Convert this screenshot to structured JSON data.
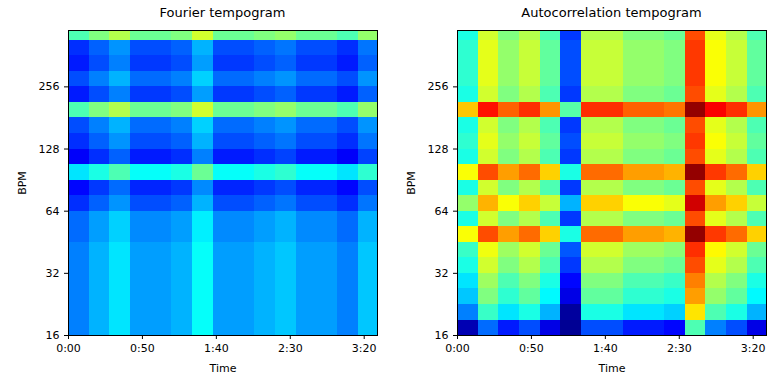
{
  "chart_data": [
    {
      "type": "heatmap",
      "title": "Fourier tempogram",
      "x_label": "Time",
      "y_label": "BPM",
      "log": "y",
      "color": "jet",
      "xlim": [
        0,
        209
      ],
      "ylim": [
        16,
        480
      ],
      "xticks": [
        {
          "value": 0,
          "label": "0:00"
        },
        {
          "value": 50,
          "label": "0:50"
        },
        {
          "value": 100,
          "label": "1:40"
        },
        {
          "value": 150,
          "label": "2:30"
        },
        {
          "value": 200,
          "label": "3:20"
        }
      ],
      "yticks": [
        16,
        32,
        64,
        128,
        256
      ],
      "color_range": [
        0,
        1
      ],
      "x_edges": [
        0,
        14,
        28,
        42,
        56,
        70,
        84,
        98,
        112,
        126,
        140,
        154,
        168,
        182,
        196,
        209
      ],
      "y_edges": [
        16,
        19,
        22.6,
        27,
        32,
        38,
        45,
        54,
        64,
        76,
        90,
        108,
        128,
        152,
        181,
        215,
        256,
        304,
        362,
        431,
        480
      ],
      "values": [
        [
          0.25,
          0.3,
          0.35,
          0.28,
          0.28,
          0.3,
          0.38,
          0.28,
          0.28,
          0.3,
          0.32,
          0.28,
          0.28,
          0.25,
          0.32
        ],
        [
          0.25,
          0.3,
          0.35,
          0.28,
          0.28,
          0.3,
          0.38,
          0.28,
          0.28,
          0.3,
          0.32,
          0.28,
          0.28,
          0.25,
          0.32
        ],
        [
          0.25,
          0.3,
          0.35,
          0.28,
          0.28,
          0.3,
          0.38,
          0.28,
          0.28,
          0.3,
          0.32,
          0.28,
          0.28,
          0.25,
          0.32
        ],
        [
          0.25,
          0.3,
          0.35,
          0.28,
          0.28,
          0.3,
          0.38,
          0.28,
          0.28,
          0.3,
          0.32,
          0.28,
          0.28,
          0.25,
          0.32
        ],
        [
          0.25,
          0.3,
          0.35,
          0.28,
          0.28,
          0.3,
          0.38,
          0.28,
          0.28,
          0.3,
          0.32,
          0.28,
          0.28,
          0.25,
          0.32
        ],
        [
          0.25,
          0.3,
          0.35,
          0.28,
          0.28,
          0.3,
          0.38,
          0.28,
          0.28,
          0.3,
          0.32,
          0.28,
          0.28,
          0.25,
          0.32
        ],
        [
          0.23,
          0.28,
          0.33,
          0.26,
          0.26,
          0.28,
          0.36,
          0.26,
          0.26,
          0.28,
          0.3,
          0.26,
          0.26,
          0.23,
          0.3
        ],
        [
          0.23,
          0.28,
          0.33,
          0.26,
          0.26,
          0.28,
          0.36,
          0.26,
          0.26,
          0.28,
          0.3,
          0.26,
          0.26,
          0.23,
          0.3
        ],
        [
          0.17,
          0.22,
          0.27,
          0.2,
          0.2,
          0.22,
          0.3,
          0.2,
          0.2,
          0.22,
          0.24,
          0.2,
          0.2,
          0.17,
          0.24
        ],
        [
          0.13,
          0.18,
          0.23,
          0.16,
          0.16,
          0.18,
          0.26,
          0.16,
          0.16,
          0.18,
          0.2,
          0.16,
          0.16,
          0.13,
          0.2
        ],
        [
          0.35,
          0.4,
          0.45,
          0.38,
          0.38,
          0.4,
          0.48,
          0.38,
          0.38,
          0.4,
          0.42,
          0.38,
          0.38,
          0.35,
          0.42
        ],
        [
          0.12,
          0.17,
          0.22,
          0.15,
          0.15,
          0.17,
          0.25,
          0.15,
          0.15,
          0.17,
          0.19,
          0.15,
          0.15,
          0.12,
          0.19
        ],
        [
          0.17,
          0.22,
          0.27,
          0.2,
          0.2,
          0.22,
          0.3,
          0.2,
          0.2,
          0.22,
          0.24,
          0.2,
          0.2,
          0.17,
          0.24
        ],
        [
          0.2,
          0.25,
          0.3,
          0.23,
          0.23,
          0.25,
          0.33,
          0.23,
          0.23,
          0.25,
          0.27,
          0.23,
          0.23,
          0.2,
          0.27
        ],
        [
          0.45,
          0.5,
          0.55,
          0.48,
          0.48,
          0.5,
          0.58,
          0.48,
          0.48,
          0.5,
          0.52,
          0.48,
          0.48,
          0.45,
          0.52
        ],
        [
          0.15,
          0.2,
          0.25,
          0.18,
          0.18,
          0.2,
          0.28,
          0.18,
          0.18,
          0.2,
          0.22,
          0.18,
          0.18,
          0.15,
          0.22
        ],
        [
          0.2,
          0.25,
          0.3,
          0.23,
          0.23,
          0.25,
          0.33,
          0.23,
          0.23,
          0.25,
          0.27,
          0.23,
          0.23,
          0.2,
          0.27
        ],
        [
          0.15,
          0.2,
          0.25,
          0.18,
          0.18,
          0.2,
          0.28,
          0.18,
          0.18,
          0.2,
          0.22,
          0.18,
          0.18,
          0.15,
          0.22
        ],
        [
          0.17,
          0.22,
          0.27,
          0.2,
          0.2,
          0.22,
          0.3,
          0.2,
          0.2,
          0.22,
          0.24,
          0.2,
          0.2,
          0.17,
          0.24
        ],
        [
          0.45,
          0.5,
          0.55,
          0.48,
          0.48,
          0.5,
          0.58,
          0.48,
          0.48,
          0.5,
          0.52,
          0.48,
          0.48,
          0.45,
          0.52
        ]
      ]
    },
    {
      "type": "heatmap",
      "title": "Autocorrelation tempogram",
      "x_label": "Time",
      "y_label": "BPM",
      "log": "y",
      "color": "jet",
      "xlim": [
        0,
        209
      ],
      "ylim": [
        16,
        480
      ],
      "xticks": [
        {
          "value": 0,
          "label": "0:00"
        },
        {
          "value": 50,
          "label": "0:50"
        },
        {
          "value": 100,
          "label": "1:40"
        },
        {
          "value": 150,
          "label": "2:30"
        },
        {
          "value": 200,
          "label": "3:20"
        }
      ],
      "yticks": [
        16,
        32,
        64,
        128,
        256
      ],
      "color_range": [
        0,
        1
      ],
      "x_edges": [
        0,
        14,
        28,
        42,
        56,
        70,
        84,
        98,
        112,
        126,
        140,
        154,
        168,
        182,
        196,
        209
      ],
      "y_edges": [
        16,
        19,
        22.6,
        27,
        32,
        38,
        45,
        54,
        64,
        76,
        90,
        108,
        128,
        152,
        181,
        215,
        256,
        304,
        362,
        431,
        480
      ],
      "values": [
        [
          0.05,
          0.23,
          0.15,
          0.2,
          0.1,
          0.02,
          0.2,
          0.2,
          0.15,
          0.15,
          0.13,
          0.45,
          0.25,
          0.2,
          0.1
        ],
        [
          0.25,
          0.43,
          0.35,
          0.4,
          0.3,
          0.03,
          0.4,
          0.4,
          0.35,
          0.35,
          0.33,
          0.65,
          0.45,
          0.4,
          0.3
        ],
        [
          0.32,
          0.5,
          0.42,
          0.47,
          0.37,
          0.1,
          0.47,
          0.47,
          0.42,
          0.42,
          0.4,
          0.72,
          0.52,
          0.47,
          0.37
        ],
        [
          0.35,
          0.53,
          0.45,
          0.5,
          0.4,
          0.13,
          0.5,
          0.5,
          0.45,
          0.45,
          0.43,
          0.75,
          0.55,
          0.5,
          0.4
        ],
        [
          0.4,
          0.58,
          0.5,
          0.55,
          0.45,
          0.18,
          0.55,
          0.55,
          0.5,
          0.5,
          0.48,
          0.8,
          0.6,
          0.55,
          0.45
        ],
        [
          0.43,
          0.61,
          0.53,
          0.58,
          0.48,
          0.21,
          0.58,
          0.58,
          0.53,
          0.53,
          0.51,
          0.83,
          0.63,
          0.58,
          0.48
        ],
        [
          0.62,
          0.8,
          0.72,
          0.77,
          0.67,
          0.4,
          0.77,
          0.77,
          0.72,
          0.72,
          0.7,
          0.98,
          0.82,
          0.77,
          0.67
        ],
        [
          0.4,
          0.58,
          0.5,
          0.55,
          0.45,
          0.18,
          0.55,
          0.55,
          0.5,
          0.5,
          0.48,
          0.8,
          0.6,
          0.55,
          0.45
        ],
        [
          0.52,
          0.7,
          0.62,
          0.67,
          0.57,
          0.3,
          0.67,
          0.67,
          0.62,
          0.62,
          0.6,
          0.92,
          0.72,
          0.67,
          0.57
        ],
        [
          0.4,
          0.58,
          0.5,
          0.55,
          0.45,
          0.18,
          0.55,
          0.55,
          0.5,
          0.5,
          0.48,
          0.8,
          0.6,
          0.55,
          0.45
        ],
        [
          0.62,
          0.8,
          0.72,
          0.77,
          0.67,
          0.4,
          0.77,
          0.77,
          0.72,
          0.72,
          0.7,
          0.98,
          0.82,
          0.77,
          0.67
        ],
        [
          0.4,
          0.58,
          0.5,
          0.55,
          0.45,
          0.18,
          0.55,
          0.55,
          0.5,
          0.5,
          0.48,
          0.8,
          0.6,
          0.55,
          0.45
        ],
        [
          0.42,
          0.6,
          0.52,
          0.57,
          0.47,
          0.2,
          0.57,
          0.57,
          0.52,
          0.52,
          0.5,
          0.82,
          0.62,
          0.57,
          0.47
        ],
        [
          0.4,
          0.58,
          0.5,
          0.55,
          0.45,
          0.18,
          0.55,
          0.55,
          0.5,
          0.5,
          0.48,
          0.8,
          0.6,
          0.55,
          0.45
        ],
        [
          0.68,
          0.86,
          0.78,
          0.83,
          0.73,
          0.46,
          0.83,
          0.83,
          0.78,
          0.78,
          0.76,
          0.98,
          0.88,
          0.83,
          0.73
        ],
        [
          0.4,
          0.58,
          0.5,
          0.55,
          0.45,
          0.18,
          0.55,
          0.55,
          0.5,
          0.5,
          0.48,
          0.8,
          0.6,
          0.55,
          0.45
        ],
        [
          0.42,
          0.6,
          0.52,
          0.57,
          0.47,
          0.2,
          0.57,
          0.57,
          0.52,
          0.52,
          0.5,
          0.82,
          0.62,
          0.57,
          0.47
        ],
        [
          0.42,
          0.6,
          0.52,
          0.57,
          0.47,
          0.2,
          0.57,
          0.57,
          0.52,
          0.52,
          0.5,
          0.82,
          0.62,
          0.57,
          0.47
        ],
        [
          0.42,
          0.6,
          0.52,
          0.57,
          0.47,
          0.2,
          0.57,
          0.57,
          0.52,
          0.52,
          0.5,
          0.82,
          0.62,
          0.57,
          0.47
        ],
        [
          0.4,
          0.58,
          0.5,
          0.55,
          0.45,
          0.18,
          0.55,
          0.55,
          0.5,
          0.5,
          0.48,
          0.8,
          0.6,
          0.55,
          0.45
        ]
      ]
    }
  ]
}
